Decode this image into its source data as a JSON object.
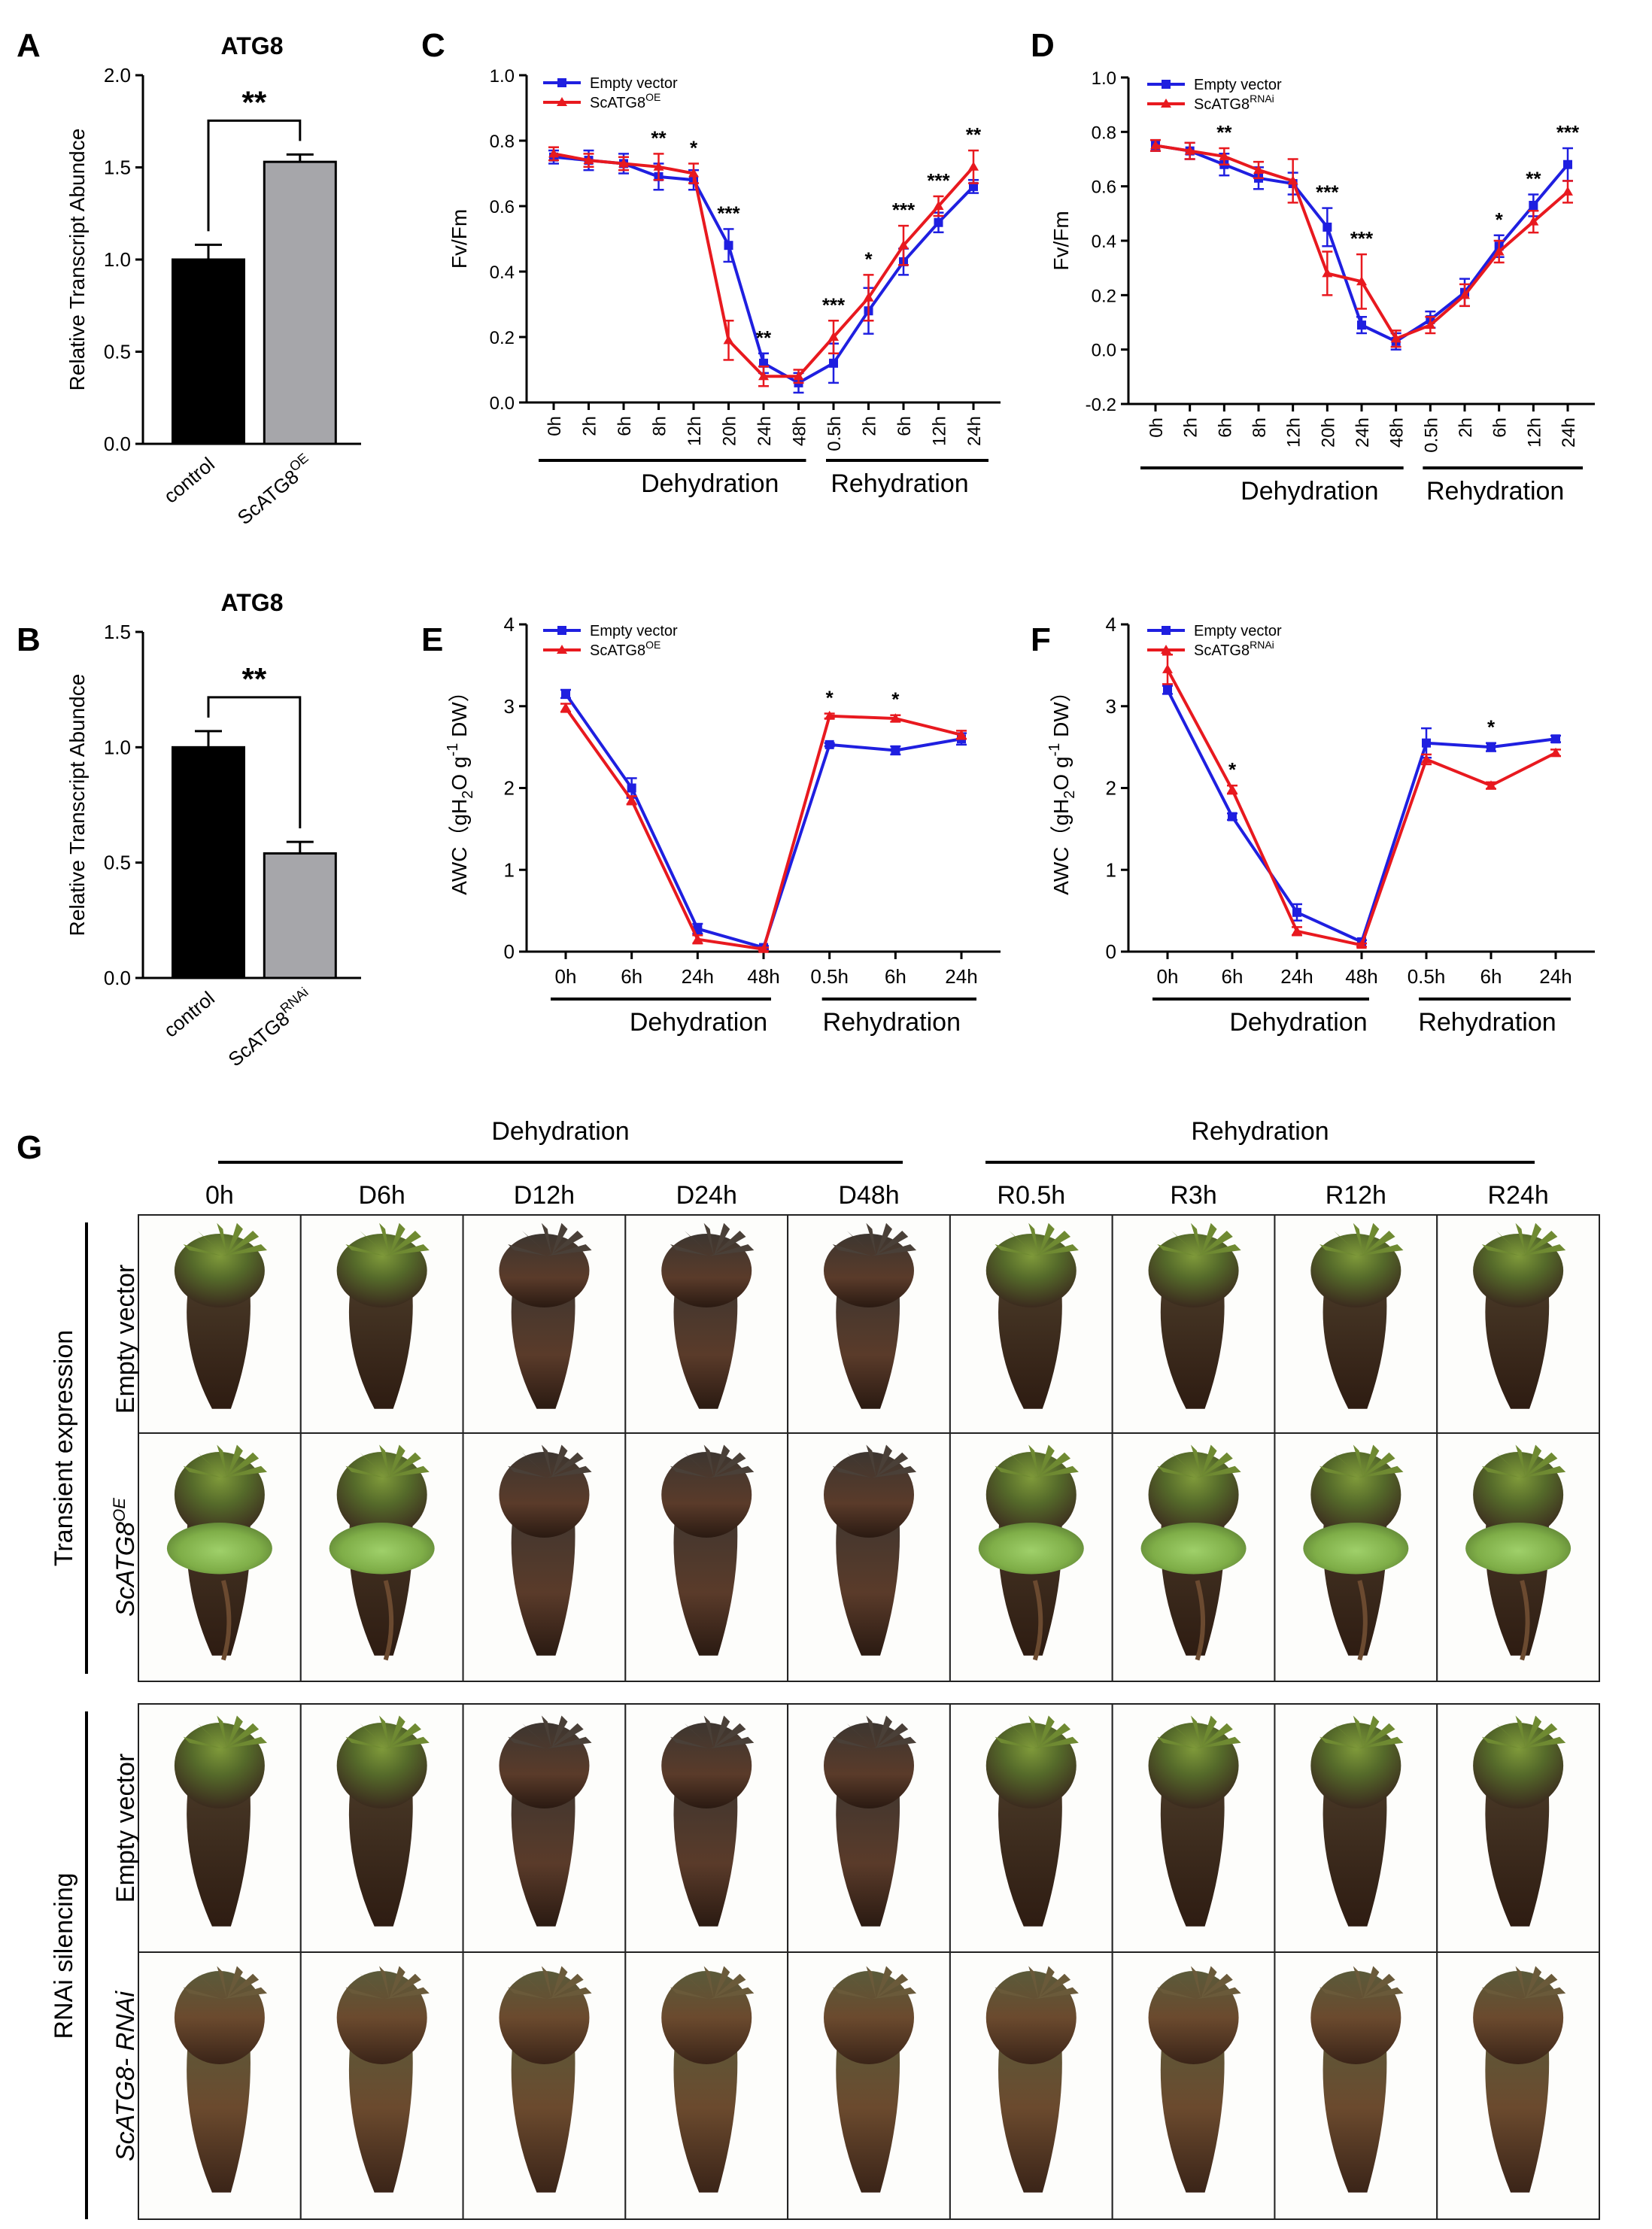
{
  "panel_labels": {
    "A": "A",
    "B": "B",
    "C": "C",
    "D": "D",
    "E": "E",
    "F": "F",
    "G": "G"
  },
  "colors": {
    "empty_vector": "#1f1fe0",
    "scatg8": "#e8191f",
    "bar_control": "#000000",
    "bar_treat": "#a6a6aa"
  },
  "groups": {
    "dehydration": "Dehydration",
    "rehydration": "Rehydration"
  },
  "legend": {
    "empty_vector": "Empty vector",
    "scatg8_base": "ScATG8",
    "oe_sup": "OE",
    "rnai_sup": "RNAi"
  },
  "chart_data": [
    {
      "id": "A",
      "type": "bar",
      "title": "ATG8",
      "ylabel": "Relative Transcript Abundce",
      "categories": [
        "control",
        "ScATG8^OE"
      ],
      "cat_base": "ScATG8",
      "cat_sup": "OE",
      "values": [
        1.0,
        1.53
      ],
      "errors": [
        0.08,
        0.04
      ],
      "ylim": [
        0,
        2.0
      ],
      "yticks": [
        "0.0",
        "0.5",
        "1.0",
        "1.5",
        "2.0"
      ],
      "significance": "**"
    },
    {
      "id": "B",
      "type": "bar",
      "title": "ATG8",
      "ylabel": "Relative Transcript Abundce",
      "categories": [
        "control",
        "ScATG8^RNAi"
      ],
      "cat_base": "ScATG8",
      "cat_sup": "RNAi",
      "values": [
        1.0,
        0.54
      ],
      "errors": [
        0.07,
        0.05
      ],
      "ylim": [
        0,
        1.5
      ],
      "yticks": [
        "0.0",
        "0.5",
        "1.0",
        "1.5"
      ],
      "significance": "**"
    },
    {
      "id": "C",
      "type": "line",
      "ylabel": "Fv/Fm",
      "x": [
        "0h",
        "2h",
        "6h",
        "8h",
        "12h",
        "20h",
        "24h",
        "48h",
        "0.5h",
        "2h",
        "6h",
        "12h",
        "24h"
      ],
      "ylim": [
        0,
        1.0
      ],
      "yticks": [
        "0.0",
        "0.2",
        "0.4",
        "0.6",
        "0.8",
        "1.0"
      ],
      "series": [
        {
          "name": "Empty vector",
          "values": [
            0.75,
            0.74,
            0.73,
            0.69,
            0.68,
            0.48,
            0.12,
            0.06,
            0.12,
            0.28,
            0.43,
            0.55,
            0.66
          ],
          "errors": [
            0.02,
            0.03,
            0.03,
            0.04,
            0.03,
            0.05,
            0.03,
            0.03,
            0.06,
            0.07,
            0.04,
            0.03,
            0.02
          ]
        },
        {
          "name": "ScATG8^OE",
          "values": [
            0.76,
            0.74,
            0.73,
            0.72,
            0.7,
            0.19,
            0.08,
            0.08,
            0.2,
            0.32,
            0.48,
            0.6,
            0.72
          ],
          "errors": [
            0.02,
            0.02,
            0.02,
            0.04,
            0.03,
            0.06,
            0.03,
            0.02,
            0.05,
            0.07,
            0.06,
            0.03,
            0.05
          ]
        }
      ],
      "annotations": [
        "",
        "",
        "",
        "**",
        "*",
        "***",
        "**",
        "",
        "***",
        "*",
        "***",
        "***",
        "**"
      ]
    },
    {
      "id": "D",
      "type": "line",
      "ylabel": "Fv/Fm",
      "x": [
        "0h",
        "2h",
        "6h",
        "8h",
        "12h",
        "20h",
        "24h",
        "48h",
        "0.5h",
        "2h",
        "6h",
        "12h",
        "24h"
      ],
      "ylim": [
        -0.2,
        1.0
      ],
      "yticks": [
        "-0.2",
        "0.0",
        "0.2",
        "0.4",
        "0.6",
        "0.8",
        "1.0"
      ],
      "series": [
        {
          "name": "Empty vector",
          "values": [
            0.75,
            0.73,
            0.68,
            0.63,
            0.61,
            0.45,
            0.09,
            0.03,
            0.11,
            0.21,
            0.38,
            0.53,
            0.68
          ],
          "errors": [
            0.02,
            0.03,
            0.04,
            0.04,
            0.04,
            0.07,
            0.03,
            0.03,
            0.03,
            0.05,
            0.04,
            0.04,
            0.06
          ]
        },
        {
          "name": "ScATG8^RNAi",
          "values": [
            0.75,
            0.73,
            0.71,
            0.66,
            0.62,
            0.28,
            0.25,
            0.04,
            0.09,
            0.2,
            0.36,
            0.47,
            0.58
          ],
          "errors": [
            0.02,
            0.03,
            0.03,
            0.03,
            0.08,
            0.08,
            0.1,
            0.03,
            0.03,
            0.04,
            0.04,
            0.04,
            0.04
          ]
        }
      ],
      "annotations": [
        "",
        "",
        "**",
        "",
        "",
        "***",
        "***",
        "",
        "",
        "",
        "*",
        "**",
        "***"
      ]
    },
    {
      "id": "E",
      "type": "line",
      "ylabel_pre": "AWC（gH",
      "ylabel_sub": "2",
      "ylabel_mid": "O g",
      "ylabel_sup": "-1",
      "ylabel_post": " DW）",
      "x": [
        "0h",
        "6h",
        "24h",
        "48h",
        "0.5h",
        "6h",
        "24h"
      ],
      "ylim": [
        0,
        4
      ],
      "yticks": [
        "0",
        "1",
        "2",
        "3",
        "4"
      ],
      "series": [
        {
          "name": "Empty vector",
          "values": [
            3.15,
            2.0,
            0.28,
            0.05,
            2.53,
            2.46,
            2.6
          ],
          "errors": [
            0.05,
            0.12,
            0.06,
            0.02,
            0.02,
            0.05,
            0.07
          ]
        },
        {
          "name": "ScATG8^OE",
          "values": [
            2.98,
            1.85,
            0.15,
            0.03,
            2.88,
            2.85,
            2.65
          ],
          "errors": [
            0.05,
            0.05,
            0.05,
            0.02,
            0.03,
            0.04,
            0.05
          ]
        }
      ],
      "annotations": [
        "",
        "",
        "",
        "",
        "*",
        "*",
        ""
      ]
    },
    {
      "id": "F",
      "type": "line",
      "ylabel_pre": "AWC（gH",
      "ylabel_sub": "2",
      "ylabel_mid": "O g",
      "ylabel_sup": "-1",
      "ylabel_post": " DW）",
      "x": [
        "0h",
        "6h",
        "24h",
        "48h",
        "0.5h",
        "6h",
        "24h"
      ],
      "ylim": [
        0,
        4
      ],
      "yticks": [
        "0",
        "1",
        "2",
        "3",
        "4"
      ],
      "series": [
        {
          "name": "Empty vector",
          "values": [
            3.2,
            1.65,
            0.48,
            0.12,
            2.55,
            2.5,
            2.6
          ],
          "errors": [
            0.05,
            0.04,
            0.1,
            0.02,
            0.18,
            0.05,
            0.04
          ]
        },
        {
          "name": "ScATG8^RNAi",
          "values": [
            3.45,
            1.98,
            0.25,
            0.08,
            2.35,
            2.03,
            2.43
          ],
          "errors": [
            0.18,
            0.05,
            0.05,
            0.02,
            0.06,
            0.04,
            0.04
          ]
        }
      ],
      "annotations": [
        "",
        "*",
        "",
        "",
        "",
        "*",
        ""
      ]
    }
  ],
  "panel_g": {
    "dehydration": "Dehydration",
    "rehydration": "Rehydration",
    "columns": [
      "0h",
      "D6h",
      "D12h",
      "D24h",
      "D48h",
      "R0.5h",
      "R3h",
      "R12h",
      "R24h"
    ],
    "section1": "Transient expression",
    "section2": "RNAi silencing",
    "row_empty": "Empty vector",
    "row_oe_base": "ScATG8",
    "row_oe_sup": "OE",
    "row_rnai": "ScATG8- RNAi"
  }
}
